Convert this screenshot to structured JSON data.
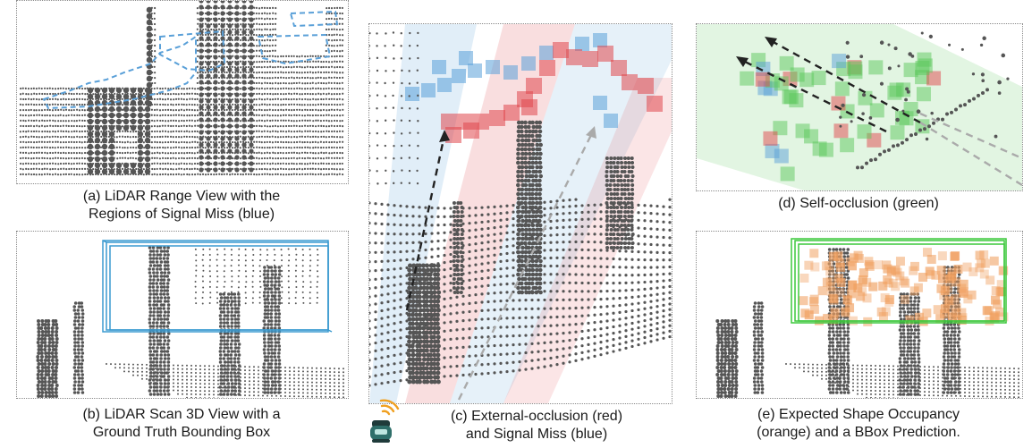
{
  "figure": {
    "panels": [
      {
        "id": "a",
        "caption_lines": [
          "(a) LiDAR Range View with the",
          "Regions of Signal Miss (blue)"
        ]
      },
      {
        "id": "b",
        "caption_lines": [
          "(b) LiDAR Scan 3D View with a",
          "Ground Truth Bounding Box"
        ]
      },
      {
        "id": "c",
        "caption_lines": [
          "(c) External-occlusion (red)",
          "and Signal Miss (blue)"
        ]
      },
      {
        "id": "d",
        "caption_lines": [
          "(d) Self-occlusion (green)"
        ]
      },
      {
        "id": "e",
        "caption_lines": [
          "(e) Expected Shape Occupancy",
          "(orange) and a BBox Prediction."
        ]
      }
    ],
    "colors": {
      "points": "#555555",
      "signal_miss_blue": "#5aa0d8",
      "external_occlusion_red": "#e0474c",
      "self_occlusion_green": "#5cc85c",
      "shape_orange": "#f0a060",
      "gt_box_blue": "#3a9ad0",
      "pred_box_green": "#3cc83c",
      "sensor_wave_orange": "#f0a020",
      "sensor_body_teal": "#2f6f6a"
    },
    "icons": [
      "lidar-sensor-icon",
      "signal-wave-icon"
    ]
  }
}
